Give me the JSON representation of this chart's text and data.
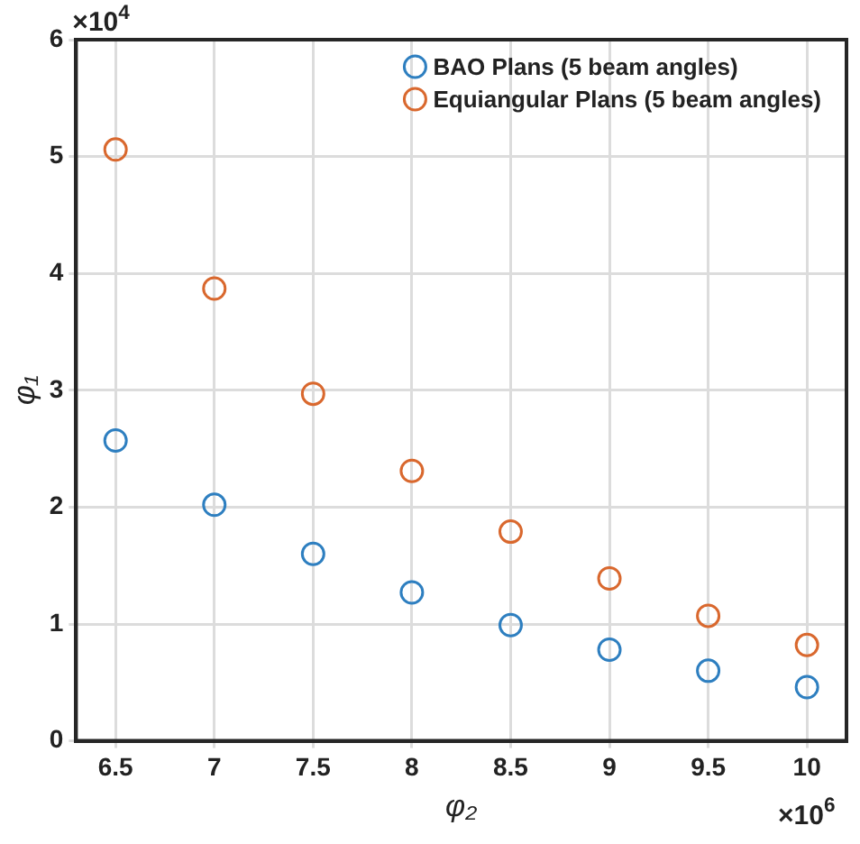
{
  "chart_data": {
    "type": "scatter",
    "xlabel": "φ₂",
    "ylabel": "φ₁",
    "xlim": [
      6.3,
      10.2
    ],
    "xticks": [
      6.5,
      7,
      7.5,
      8,
      8.5,
      9,
      9.5,
      10
    ],
    "ylim": [
      0,
      6
    ],
    "yticks": [
      0,
      1,
      2,
      3,
      4,
      5,
      6
    ],
    "x": [
      6.5,
      7,
      7.5,
      8,
      8.5,
      9,
      9.5,
      10
    ],
    "series": [
      {
        "name": "BAO Plans (5 beam angles)",
        "color": "#2e7fc0",
        "values": [
          2.57,
          2.02,
          1.6,
          1.27,
          0.99,
          0.78,
          0.6,
          0.46
        ]
      },
      {
        "name": "Equiangular Plans (5 beam angles)",
        "color": "#d9682e",
        "values": [
          5.06,
          3.87,
          2.97,
          2.31,
          1.79,
          1.39,
          1.07,
          0.82
        ]
      }
    ],
    "annotations": [
      "×10$^{4}$",
      "×10$^{6}$"
    ],
    "grid": true,
    "legend": "top right",
    "marker": "circle"
  }
}
